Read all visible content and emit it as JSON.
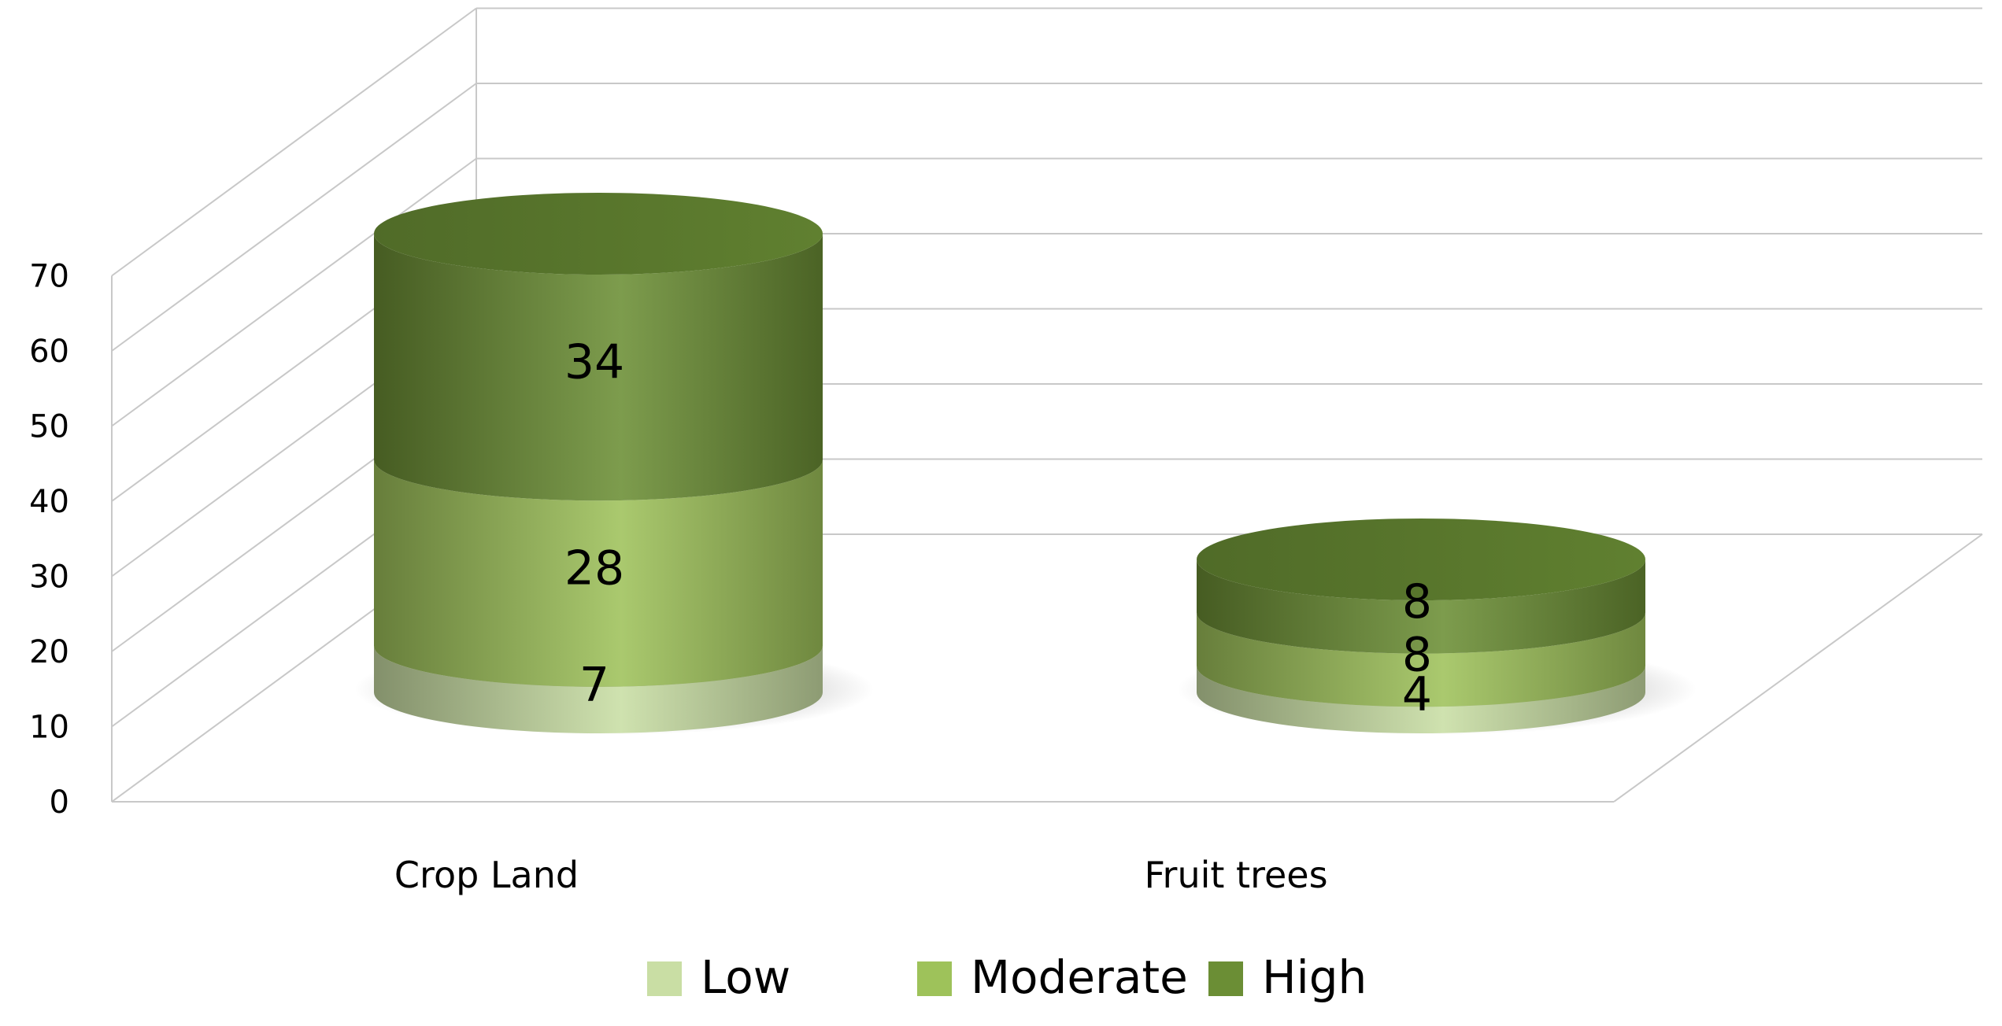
{
  "chart_data": {
    "type": "bar",
    "stacked": true,
    "three_d": true,
    "bar_shape": "cylinder",
    "title": "",
    "xlabel": "",
    "ylabel": "",
    "categories": [
      "Crop Land",
      "Fruit trees"
    ],
    "series": [
      {
        "name": "Low",
        "values": [
          7,
          4
        ],
        "color": "#c9dea4"
      },
      {
        "name": "Moderate",
        "values": [
          28,
          8
        ],
        "color": "#9ec25a"
      },
      {
        "name": "High",
        "values": [
          34,
          8
        ],
        "color": "#6b8e35"
      }
    ],
    "data_labels": [
      [
        "7",
        "4"
      ],
      [
        "28",
        "8"
      ],
      [
        "34",
        "8"
      ]
    ],
    "yticks": [
      "0",
      "10",
      "20",
      "30",
      "40",
      "50",
      "60",
      "70"
    ],
    "ylim": [
      0,
      70
    ],
    "grid": true,
    "legend_position": "bottom"
  }
}
